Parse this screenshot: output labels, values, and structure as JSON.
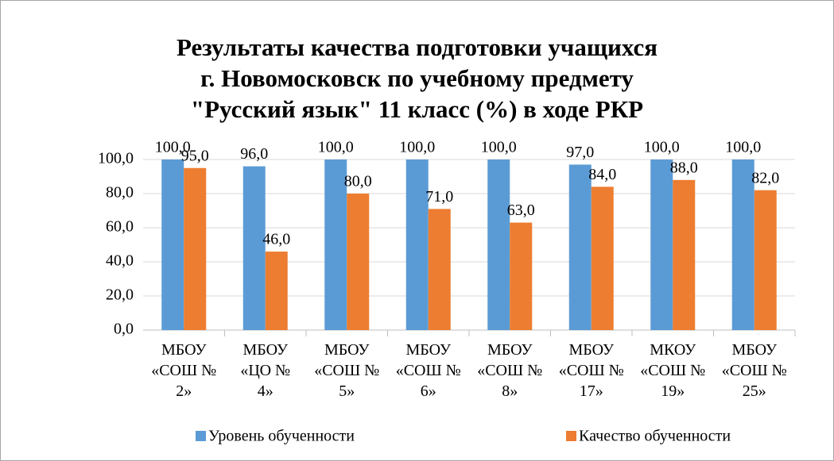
{
  "chart_data": {
    "type": "bar",
    "title": "Результаты качества подготовки учащихся\nг. Новомосковск по учебному предмету\n\"Русский язык\" 11 класс (%) в ходе РКР",
    "categories": [
      "МБОУ «СОШ № 2»",
      "МБОУ «ЦО № 4»",
      "МБОУ «СОШ № 5»",
      "МБОУ «СОШ № 6»",
      "МБОУ «СОШ № 8»",
      "МБОУ «СОШ № 17»",
      "МКОУ «СОШ № 19»",
      "МБОУ «СОШ № 25»"
    ],
    "series": [
      {
        "name": "Уровень обученности",
        "color": "#5b9bd5",
        "values": [
          100,
          96,
          100,
          100,
          100,
          97,
          100,
          100
        ],
        "value_labels": [
          "100,0",
          "96,0",
          "100,0",
          "100,0",
          "100,0",
          "97,0",
          "100,0",
          "100,0"
        ]
      },
      {
        "name": "Качество обученности",
        "color": "#ed7d31",
        "values": [
          95,
          46,
          80,
          71,
          63,
          84,
          88,
          82
        ],
        "value_labels": [
          "95,0",
          "46,0",
          "80,0",
          "71,0",
          "63,0",
          "84,0",
          "88,0",
          "82,0"
        ]
      }
    ],
    "ylim": [
      0,
      100
    ],
    "yticks": [
      {
        "value": 0,
        "label": "0,0"
      },
      {
        "value": 20,
        "label": "20,0"
      },
      {
        "value": 40,
        "label": "40,0"
      },
      {
        "value": 60,
        "label": "60,0"
      },
      {
        "value": 80,
        "label": "80,0"
      },
      {
        "value": 100,
        "label": "100,0"
      }
    ],
    "grid": true,
    "legend": "bottom"
  }
}
